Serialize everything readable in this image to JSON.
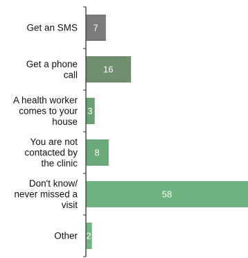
{
  "chart_data": {
    "type": "bar",
    "orientation": "horizontal",
    "categories": [
      [
        "Get an SMS"
      ],
      [
        "Get a phone",
        "call"
      ],
      [
        "A health worker",
        "comes to your",
        "house"
      ],
      [
        "You are not",
        "contacted by",
        "the clinic"
      ],
      [
        "Don't know/",
        "never missed a",
        "visit"
      ],
      [
        "Other"
      ]
    ],
    "values": [
      7,
      16,
      3,
      8,
      58,
      2
    ],
    "xlim": [
      0,
      58
    ],
    "colors": [
      "#7b7b7b",
      "#6f8f6f",
      "#6aa173",
      "#69a877",
      "#6db27f",
      "#6fb582"
    ],
    "grid": false,
    "legend": "none"
  }
}
